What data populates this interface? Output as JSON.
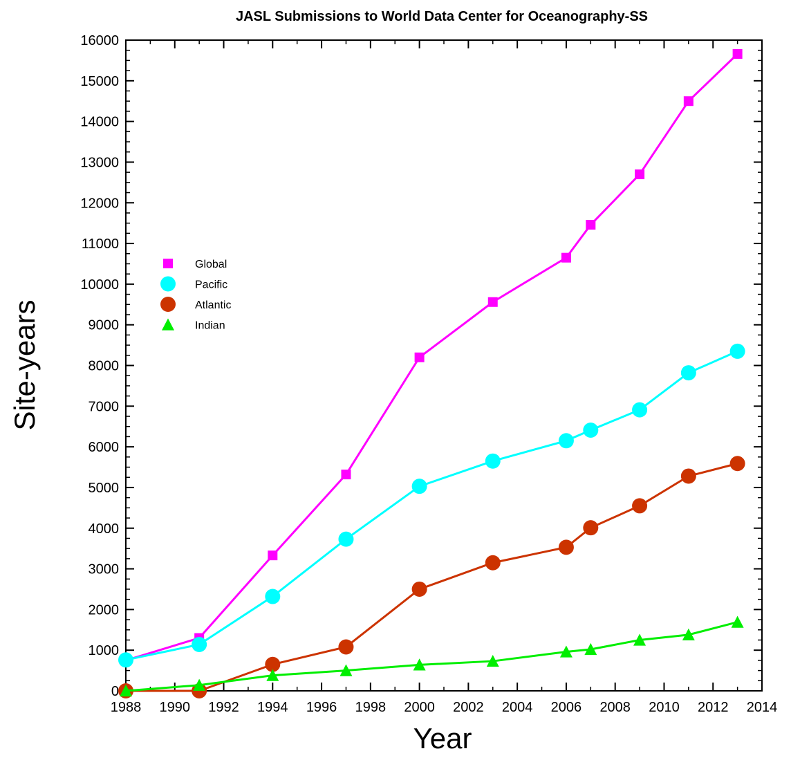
{
  "chart_data": {
    "type": "line",
    "title": "JASL Submissions to World Data Center for Oceanography-SS",
    "xlabel": "Year",
    "ylabel": "Site-years",
    "xlim": [
      1988,
      2014
    ],
    "ylim": [
      0,
      16000
    ],
    "x_ticks": [
      "1988",
      "1990",
      "1992",
      "1994",
      "1996",
      "1998",
      "2000",
      "2002",
      "2004",
      "2006",
      "2008",
      "2010",
      "2012",
      "2014"
    ],
    "y_ticks": [
      "0",
      "1000",
      "2000",
      "3000",
      "4000",
      "5000",
      "6000",
      "7000",
      "8000",
      "9000",
      "10000",
      "11000",
      "12000",
      "13000",
      "14000",
      "15000",
      "16000"
    ],
    "x_tick_values": [
      1988,
      1990,
      1992,
      1994,
      1996,
      1998,
      2000,
      2002,
      2004,
      2006,
      2008,
      2010,
      2012,
      2014
    ],
    "y_tick_values": [
      0,
      1000,
      2000,
      3000,
      4000,
      5000,
      6000,
      7000,
      8000,
      9000,
      10000,
      11000,
      12000,
      13000,
      14000,
      15000,
      16000
    ],
    "grid": false,
    "legend_position": "left",
    "series": [
      {
        "name": "Global",
        "color": "#ff00ff",
        "marker": "square",
        "x": [
          1988,
          1991,
          1994,
          1997,
          2000,
          2003,
          2006,
          2007,
          2009,
          2011,
          2013
        ],
        "y": [
          750,
          1300,
          3330,
          5320,
          8200,
          9560,
          10650,
          11460,
          12700,
          14500,
          15660
        ]
      },
      {
        "name": "Pacific",
        "color": "#00ffff",
        "marker": "circle",
        "x": [
          1988,
          1991,
          1994,
          1997,
          2000,
          2003,
          2006,
          2007,
          2009,
          2011,
          2013
        ],
        "y": [
          760,
          1140,
          2320,
          3730,
          5030,
          5650,
          6150,
          6410,
          6910,
          7820,
          8350
        ]
      },
      {
        "name": "Atlantic",
        "color": "#cc3300",
        "marker": "circle",
        "x": [
          1988,
          1991,
          1994,
          1997,
          2000,
          2003,
          2006,
          2007,
          2009,
          2011,
          2013
        ],
        "y": [
          0,
          0,
          650,
          1080,
          2500,
          3150,
          3530,
          4010,
          4550,
          5280,
          5590
        ]
      },
      {
        "name": "Indian",
        "color": "#00ee00",
        "marker": "triangle",
        "x": [
          1988,
          1991,
          1994,
          1997,
          2000,
          2003,
          2006,
          2007,
          2009,
          2011,
          2013
        ],
        "y": [
          0,
          140,
          380,
          500,
          640,
          730,
          960,
          1020,
          1250,
          1380,
          1690
        ]
      }
    ]
  }
}
